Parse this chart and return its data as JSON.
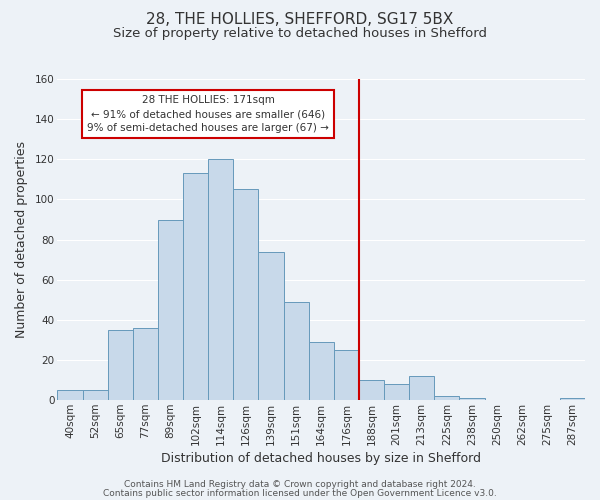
{
  "title": "28, THE HOLLIES, SHEFFORD, SG17 5BX",
  "subtitle": "Size of property relative to detached houses in Shefford",
  "xlabel": "Distribution of detached houses by size in Shefford",
  "ylabel": "Number of detached properties",
  "footer_line1": "Contains HM Land Registry data © Crown copyright and database right 2024.",
  "footer_line2": "Contains public sector information licensed under the Open Government Licence v3.0.",
  "bar_labels": [
    "40sqm",
    "52sqm",
    "65sqm",
    "77sqm",
    "89sqm",
    "102sqm",
    "114sqm",
    "126sqm",
    "139sqm",
    "151sqm",
    "164sqm",
    "176sqm",
    "188sqm",
    "201sqm",
    "213sqm",
    "225sqm",
    "238sqm",
    "250sqm",
    "262sqm",
    "275sqm",
    "287sqm"
  ],
  "bar_values": [
    5,
    5,
    35,
    36,
    90,
    113,
    120,
    105,
    74,
    49,
    29,
    25,
    10,
    8,
    12,
    2,
    1,
    0,
    0,
    0,
    1
  ],
  "bar_color": "#c8d9ea",
  "bar_edge_color": "#6699bb",
  "vline_x": 11.5,
  "vline_color": "#cc0000",
  "annotation_title": "28 THE HOLLIES: 171sqm",
  "annotation_line1": "← 91% of detached houses are smaller (646)",
  "annotation_line2": "9% of semi-detached houses are larger (67) →",
  "annotation_box_color": "#ffffff",
  "annotation_box_edge": "#cc0000",
  "ylim": [
    0,
    160
  ],
  "yticks": [
    0,
    20,
    40,
    60,
    80,
    100,
    120,
    140,
    160
  ],
  "background_color": "#edf2f7",
  "grid_color": "#ffffff",
  "title_fontsize": 11,
  "subtitle_fontsize": 9.5,
  "axis_label_fontsize": 9,
  "tick_fontsize": 7.5,
  "footer_fontsize": 6.5
}
